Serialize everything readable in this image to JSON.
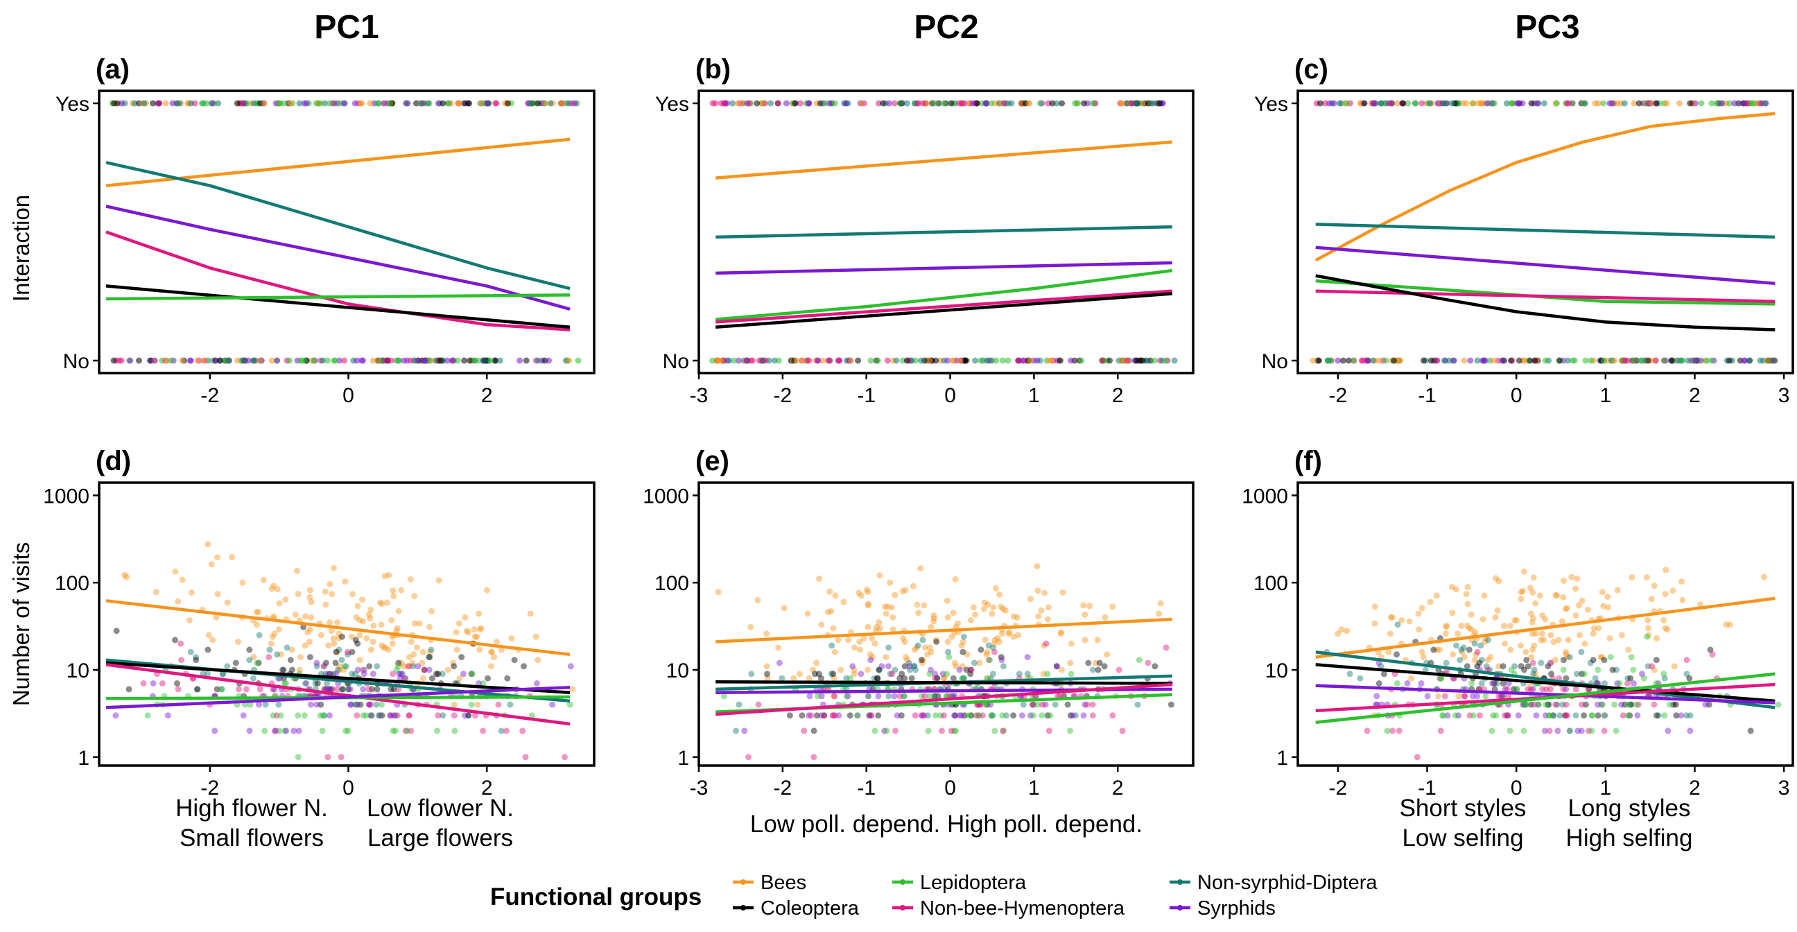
{
  "colors": {
    "Bees": "#f7941d",
    "Coleoptera": "#000000",
    "Lepidoptera": "#2dbf2d",
    "Non-bee-Hymenoptera": "#e0177e",
    "Non-syrphid-Diptera": "#137a72",
    "Syrphids": "#7a19d1"
  },
  "columns": [
    "PC1",
    "PC2",
    "PC3"
  ],
  "axis_labels": {
    "top_y": "Interaction",
    "bottom_y": "Number of visits"
  },
  "x_descriptors": {
    "pc1": {
      "left": [
        "High flower N.",
        "Small flowers"
      ],
      "right": [
        "Low flower N.",
        "Large flowers"
      ]
    },
    "pc2": {
      "text": "Low poll. depend. High poll. depend."
    },
    "pc3": {
      "left": [
        "Short styles",
        "Low selfing"
      ],
      "right": [
        "Long styles",
        "High selfing"
      ]
    }
  },
  "legend": {
    "title": "Functional groups",
    "items": [
      "Bees",
      "Lepidoptera",
      "Non-syrphid-Diptera",
      "Coleoptera",
      "Non-bee-Hymenoptera",
      "Syrphids"
    ]
  },
  "chart_data": [
    {
      "id": "a",
      "label": "(a)",
      "column": "PC1",
      "type": "line",
      "ylabel": "Interaction",
      "y_scale": "probability",
      "xlim": [
        -3.6,
        3.55
      ],
      "xticks": [
        -2,
        0,
        2
      ],
      "xtick_labels": [
        "-2",
        "0",
        "2"
      ],
      "ylim": [
        0,
        1
      ],
      "yticks": [
        0,
        1
      ],
      "ytick_labels": [
        "No",
        "Yes"
      ],
      "points": "binary rug of observations at No and Yes",
      "series": [
        {
          "name": "Bees",
          "x": [
            -3.5,
            3.2
          ],
          "y": [
            0.68,
            0.86
          ]
        },
        {
          "name": "Non-syrphid-Diptera",
          "x": [
            -3.5,
            -2.0,
            0.0,
            2.0,
            3.2
          ],
          "y": [
            0.77,
            0.68,
            0.52,
            0.36,
            0.28
          ]
        },
        {
          "name": "Syrphids",
          "x": [
            -3.5,
            -2.0,
            0.0,
            2.0,
            3.2
          ],
          "y": [
            0.6,
            0.51,
            0.4,
            0.29,
            0.2
          ]
        },
        {
          "name": "Non-bee-Hymenoptera",
          "x": [
            -3.5,
            -2.0,
            0.0,
            2.0,
            3.2
          ],
          "y": [
            0.5,
            0.36,
            0.22,
            0.14,
            0.12
          ]
        },
        {
          "name": "Coleoptera",
          "x": [
            -3.5,
            3.2
          ],
          "y": [
            0.29,
            0.13
          ]
        },
        {
          "name": "Lepidoptera",
          "x": [
            -3.5,
            3.2
          ],
          "y": [
            0.24,
            0.255
          ]
        }
      ]
    },
    {
      "id": "b",
      "label": "(b)",
      "column": "PC2",
      "type": "line",
      "y_scale": "probability",
      "xlim": [
        -3.0,
        2.9
      ],
      "xticks": [
        -3,
        -2,
        -1,
        0,
        1,
        2
      ],
      "xtick_labels": [
        "-3",
        "-2",
        "-1",
        "0",
        "1",
        "2"
      ],
      "ylim": [
        0,
        1
      ],
      "yticks": [
        0,
        1
      ],
      "ytick_labels": [
        "No",
        "Yes"
      ],
      "points": "binary rug of observations at No and Yes",
      "series": [
        {
          "name": "Bees",
          "x": [
            -2.8,
            2.65
          ],
          "y": [
            0.71,
            0.85
          ]
        },
        {
          "name": "Non-syrphid-Diptera",
          "x": [
            -2.8,
            2.65
          ],
          "y": [
            0.48,
            0.52
          ]
        },
        {
          "name": "Syrphids",
          "x": [
            -2.8,
            2.65
          ],
          "y": [
            0.34,
            0.38
          ]
        },
        {
          "name": "Lepidoptera",
          "x": [
            -2.8,
            -1.0,
            1.0,
            2.65
          ],
          "y": [
            0.16,
            0.21,
            0.28,
            0.35
          ]
        },
        {
          "name": "Non-bee-Hymenoptera",
          "x": [
            -2.8,
            2.65
          ],
          "y": [
            0.15,
            0.27
          ]
        },
        {
          "name": "Coleoptera",
          "x": [
            -2.8,
            2.65
          ],
          "y": [
            0.13,
            0.26
          ]
        }
      ]
    },
    {
      "id": "c",
      "label": "(c)",
      "column": "PC3",
      "type": "line",
      "y_scale": "probability",
      "xlim": [
        -2.45,
        3.1
      ],
      "xticks": [
        -2,
        -1,
        0,
        1,
        2,
        3
      ],
      "xtick_labels": [
        "-2",
        "-1",
        "0",
        "1",
        "2",
        "3"
      ],
      "ylim": [
        0,
        1
      ],
      "yticks": [
        0,
        1
      ],
      "ytick_labels": [
        "No",
        "Yes"
      ],
      "points": "binary rug of observations at No and Yes",
      "series": [
        {
          "name": "Bees",
          "x": [
            -2.25,
            -1.5,
            -0.75,
            0.0,
            0.75,
            1.5,
            2.25,
            2.9
          ],
          "y": [
            0.39,
            0.53,
            0.66,
            0.77,
            0.85,
            0.91,
            0.94,
            0.96
          ]
        },
        {
          "name": "Non-syrphid-Diptera",
          "x": [
            -2.25,
            2.9
          ],
          "y": [
            0.53,
            0.48
          ]
        },
        {
          "name": "Syrphids",
          "x": [
            -2.25,
            2.9
          ],
          "y": [
            0.44,
            0.3
          ]
        },
        {
          "name": "Lepidoptera",
          "x": [
            -2.25,
            -1.0,
            1.0,
            2.9
          ],
          "y": [
            0.31,
            0.28,
            0.23,
            0.22
          ]
        },
        {
          "name": "Non-bee-Hymenoptera",
          "x": [
            -2.25,
            2.9
          ],
          "y": [
            0.27,
            0.23
          ]
        },
        {
          "name": "Coleoptera",
          "x": [
            -2.25,
            -1.0,
            0.0,
            1.0,
            2.0,
            2.9
          ],
          "y": [
            0.33,
            0.25,
            0.19,
            0.15,
            0.13,
            0.12
          ]
        }
      ]
    },
    {
      "id": "d",
      "label": "(d)",
      "column": "PC1",
      "type": "scatter",
      "ylabel": "Number of visits",
      "y_scale": "log",
      "xlim": [
        -3.6,
        3.55
      ],
      "xticks": [
        -2,
        0,
        2
      ],
      "xtick_labels": [
        "-2",
        "0",
        "2"
      ],
      "ylim": [
        0.8,
        1400
      ],
      "yticks": [
        1,
        10,
        100,
        1000
      ],
      "ytick_labels": [
        "1",
        "10",
        "100",
        "1000"
      ],
      "points": "scattered observations per functional group",
      "series": [
        {
          "name": "Bees",
          "x": [
            -3.5,
            3.2
          ],
          "y": [
            62,
            15
          ]
        },
        {
          "name": "Non-syrphid-Diptera",
          "x": [
            -3.5,
            3.2
          ],
          "y": [
            13,
            4.4
          ]
        },
        {
          "name": "Coleoptera",
          "x": [
            -3.5,
            3.2
          ],
          "y": [
            12,
            5.5
          ]
        },
        {
          "name": "Non-bee-Hymenoptera",
          "x": [
            -3.5,
            3.2
          ],
          "y": [
            11.5,
            2.4
          ]
        },
        {
          "name": "Lepidoptera",
          "x": [
            -3.5,
            3.2
          ],
          "y": [
            4.7,
            4.9
          ]
        },
        {
          "name": "Syrphids",
          "x": [
            -3.5,
            3.2
          ],
          "y": [
            3.7,
            6.3
          ]
        }
      ]
    },
    {
      "id": "e",
      "label": "(e)",
      "column": "PC2",
      "type": "scatter",
      "y_scale": "log",
      "xlim": [
        -3.0,
        2.9
      ],
      "xticks": [
        -3,
        -2,
        -1,
        0,
        1,
        2
      ],
      "xtick_labels": [
        "-3",
        "-2",
        "-1",
        "0",
        "1",
        "2"
      ],
      "ylim": [
        0.8,
        1400
      ],
      "yticks": [
        1,
        10,
        100,
        1000
      ],
      "ytick_labels": [
        "1",
        "10",
        "100",
        "1000"
      ],
      "points": "scattered observations per functional group",
      "series": [
        {
          "name": "Bees",
          "x": [
            -2.8,
            2.65
          ],
          "y": [
            21,
            38
          ]
        },
        {
          "name": "Non-syrphid-Diptera",
          "x": [
            -2.8,
            2.65
          ],
          "y": [
            6.0,
            8.5
          ]
        },
        {
          "name": "Coleoptera",
          "x": [
            -2.8,
            2.65
          ],
          "y": [
            7.3,
            7.0
          ]
        },
        {
          "name": "Syrphids",
          "x": [
            -2.8,
            2.65
          ],
          "y": [
            5.5,
            6.0
          ]
        },
        {
          "name": "Lepidoptera",
          "x": [
            -2.8,
            2.65
          ],
          "y": [
            3.3,
            5.2
          ]
        },
        {
          "name": "Non-bee-Hymenoptera",
          "x": [
            -2.8,
            2.65
          ],
          "y": [
            3.1,
            6.8
          ]
        }
      ]
    },
    {
      "id": "f",
      "label": "(f)",
      "column": "PC3",
      "type": "scatter",
      "y_scale": "log",
      "xlim": [
        -2.45,
        3.1
      ],
      "xticks": [
        -2,
        -1,
        0,
        1,
        2,
        3
      ],
      "xtick_labels": [
        "-2",
        "-1",
        "0",
        "1",
        "2",
        "3"
      ],
      "ylim": [
        0.8,
        1400
      ],
      "yticks": [
        1,
        10,
        100,
        1000
      ],
      "ytick_labels": [
        "1",
        "10",
        "100",
        "1000"
      ],
      "points": "scattered observations per functional group",
      "series": [
        {
          "name": "Bees",
          "x": [
            -2.25,
            2.9
          ],
          "y": [
            14,
            66
          ]
        },
        {
          "name": "Non-syrphid-Diptera",
          "x": [
            -2.25,
            2.9
          ],
          "y": [
            16,
            3.7
          ]
        },
        {
          "name": "Coleoptera",
          "x": [
            -2.25,
            2.9
          ],
          "y": [
            11.5,
            4.4
          ]
        },
        {
          "name": "Syrphids",
          "x": [
            -2.25,
            2.9
          ],
          "y": [
            6.6,
            4.2
          ]
        },
        {
          "name": "Non-bee-Hymenoptera",
          "x": [
            -2.25,
            2.9
          ],
          "y": [
            3.4,
            6.8
          ]
        },
        {
          "name": "Lepidoptera",
          "x": [
            -2.25,
            2.9
          ],
          "y": [
            2.5,
            9.0
          ]
        }
      ]
    }
  ]
}
